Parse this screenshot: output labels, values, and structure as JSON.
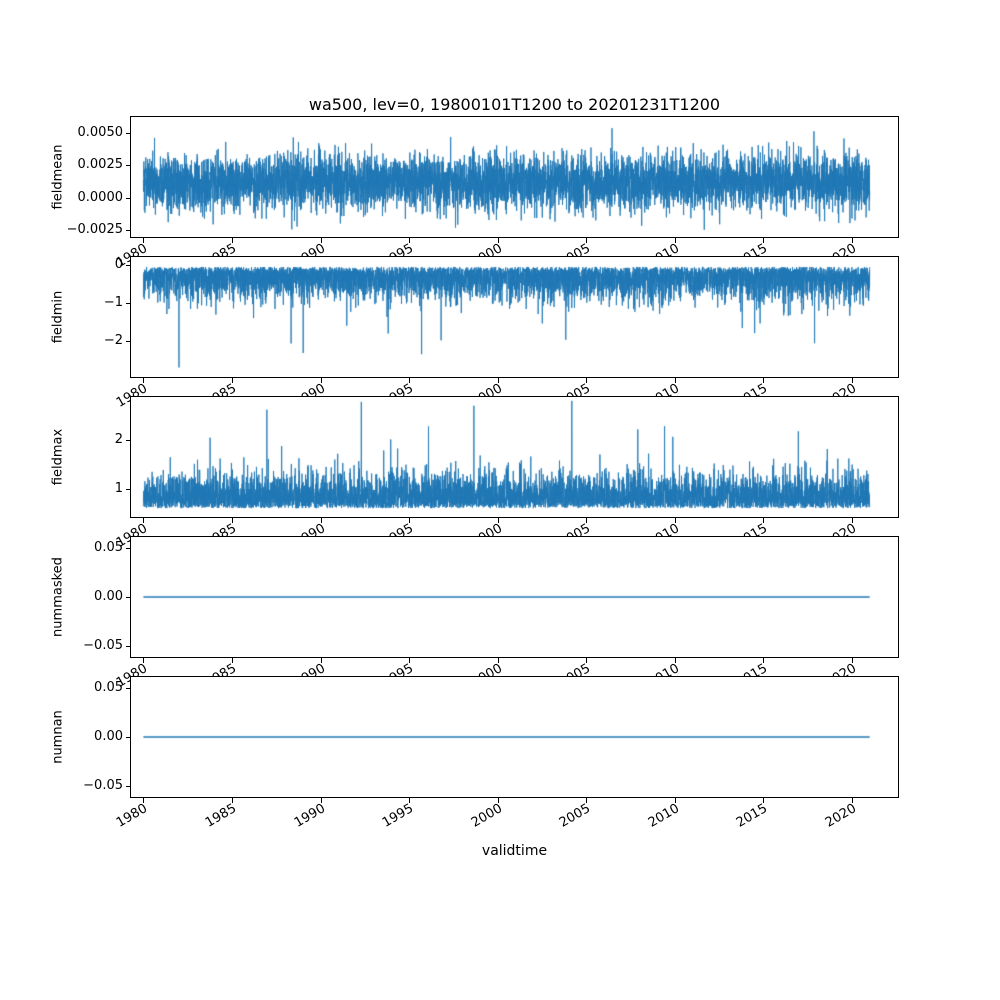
{
  "figure": {
    "title": "wa500, lev=0, 19800101T1200 to 20201231T1200",
    "xlabel": "validtime",
    "background": "#ffffff",
    "line_color": "#1f77b4",
    "axis_color": "#000000",
    "xlim": [
      1979.3,
      2022.6
    ],
    "x_data_range": [
      1980.0,
      2021.0
    ],
    "x_ticks": [
      {
        "value": 1980,
        "label": "1980"
      },
      {
        "value": 1985,
        "label": "1985"
      },
      {
        "value": 1990,
        "label": "1990"
      },
      {
        "value": 1995,
        "label": "1995"
      },
      {
        "value": 2000,
        "label": "2000"
      },
      {
        "value": 2005,
        "label": "2005"
      },
      {
        "value": 2010,
        "label": "2010"
      },
      {
        "value": 2015,
        "label": "2015"
      },
      {
        "value": 2020,
        "label": "2020"
      }
    ]
  },
  "chart_data": [
    {
      "type": "line",
      "ylabel": "fieldmean",
      "x_range_years": [
        1980,
        2021
      ],
      "ylim": [
        -0.003,
        0.0062
      ],
      "yticks": [
        {
          "value": 0.005,
          "label": "0.0050"
        },
        {
          "value": 0.0025,
          "label": "0.0025"
        },
        {
          "value": 0.0,
          "label": "0.0000"
        },
        {
          "value": -0.0025,
          "label": "−0.0025"
        }
      ],
      "series": {
        "name": "fieldmean",
        "kind": "gaussian-noise",
        "base": 0.0012,
        "std": 0.00105,
        "clip": [
          -0.0029,
          0.0059
        ],
        "seed": 101,
        "points": 6000
      }
    },
    {
      "type": "line",
      "ylabel": "fieldmin",
      "x_range_years": [
        1980,
        2021
      ],
      "ylim": [
        -2.95,
        0.2
      ],
      "yticks": [
        {
          "value": 0,
          "label": "0"
        },
        {
          "value": -1,
          "label": "−1"
        },
        {
          "value": -2,
          "label": "−2"
        }
      ],
      "series": {
        "name": "fieldmin",
        "kind": "half-gaussian-negative",
        "base": -0.06,
        "std": 0.4,
        "clip": [
          -2.72,
          -0.02
        ],
        "spike_prob": 0.002,
        "spike_range": [
          0.7,
          1.7
        ],
        "forced_spikes": [
          {
            "t": 0.049,
            "value": -2.7
          },
          {
            "t": 0.22,
            "value": -2.32
          },
          {
            "t": 0.383,
            "value": -2.35
          }
        ],
        "seed": 202,
        "points": 6000
      }
    },
    {
      "type": "line",
      "ylabel": "fieldmax",
      "x_range_years": [
        1980,
        2021
      ],
      "ylim": [
        0.42,
        2.88
      ],
      "yticks": [
        {
          "value": 2,
          "label": "2"
        },
        {
          "value": 1,
          "label": "1"
        }
      ],
      "series": {
        "name": "fieldmax",
        "kind": "half-gaussian-positive",
        "base": 0.6,
        "std": 0.33,
        "clip": [
          0.52,
          2.82
        ],
        "spike_prob": 0.003,
        "spike_range": [
          0.6,
          1.5
        ],
        "forced_spikes": [
          {
            "t": 0.17,
            "value": 2.62
          },
          {
            "t": 0.3,
            "value": 2.78
          },
          {
            "t": 0.455,
            "value": 2.7
          },
          {
            "t": 0.59,
            "value": 2.8
          }
        ],
        "seed": 303,
        "points": 6000
      }
    },
    {
      "type": "line",
      "ylabel": "nummasked",
      "x_range_years": [
        1980,
        2021
      ],
      "ylim": [
        -0.0615,
        0.0615
      ],
      "yticks": [
        {
          "value": 0.05,
          "label": "0.05"
        },
        {
          "value": 0.0,
          "label": "0.00"
        },
        {
          "value": -0.05,
          "label": "−0.05"
        }
      ],
      "series": {
        "name": "nummasked",
        "kind": "constant",
        "value": 0.0
      }
    },
    {
      "type": "line",
      "ylabel": "numnan",
      "x_range_years": [
        1980,
        2021
      ],
      "ylim": [
        -0.0615,
        0.0615
      ],
      "yticks": [
        {
          "value": 0.05,
          "label": "0.05"
        },
        {
          "value": 0.0,
          "label": "0.00"
        },
        {
          "value": -0.05,
          "label": "−0.05"
        }
      ],
      "series": {
        "name": "numnan",
        "kind": "constant",
        "value": 0.0
      }
    }
  ]
}
